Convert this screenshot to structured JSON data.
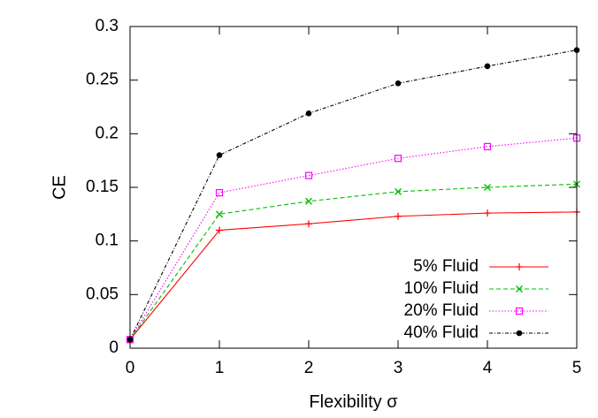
{
  "chart_data": {
    "type": "line",
    "title": "",
    "xlabel": "Flexibility σ",
    "ylabel": "CE",
    "xlim": [
      0,
      5
    ],
    "ylim": [
      0,
      0.3
    ],
    "x_ticks": [
      0,
      1,
      2,
      3,
      4,
      5
    ],
    "y_ticks": [
      0,
      0.05,
      0.1,
      0.15,
      0.2,
      0.25,
      0.3
    ],
    "x_tick_labels": [
      "0",
      "1",
      "2",
      "3",
      "4",
      "5"
    ],
    "y_tick_labels": [
      "0",
      "0.05",
      "0.1",
      "0.15",
      "0.2",
      "0.25",
      "0.3"
    ],
    "grid": false,
    "legend_position": "bottom-right",
    "x": [
      0,
      1,
      2,
      3,
      4,
      5
    ],
    "series": [
      {
        "name": "5% Fluid",
        "values": [
          0.008,
          0.11,
          0.116,
          0.123,
          0.126,
          0.127
        ],
        "color": "#ff0000",
        "dash": "solid",
        "marker": "plus"
      },
      {
        "name": "10% Fluid",
        "values": [
          0.008,
          0.125,
          0.137,
          0.146,
          0.15,
          0.153
        ],
        "color": "#00c000",
        "dash": "dashed",
        "marker": "cross"
      },
      {
        "name": "20% Fluid",
        "values": [
          0.008,
          0.145,
          0.161,
          0.177,
          0.188,
          0.196
        ],
        "color": "#ff00ff",
        "dash": "dotted",
        "marker": "square"
      },
      {
        "name": "40% Fluid",
        "values": [
          0.008,
          0.18,
          0.219,
          0.247,
          0.263,
          0.278
        ],
        "color": "#000000",
        "dash": "dashdot",
        "marker": "dot"
      }
    ]
  }
}
